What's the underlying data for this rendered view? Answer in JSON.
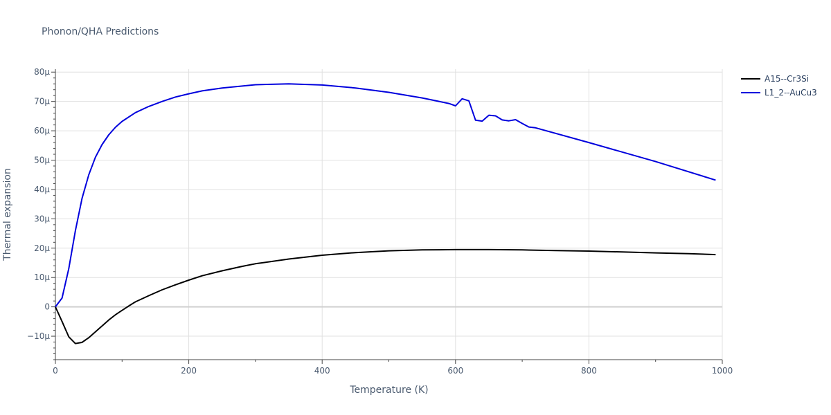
{
  "chart_data": {
    "type": "line",
    "title": "Phonon/QHA Predictions",
    "xlabel": "Temperature (K)",
    "ylabel": "Thermal expansion",
    "xlim": [
      0,
      1000
    ],
    "ylim": [
      -18,
      81
    ],
    "x_ticks": [
      0,
      200,
      400,
      600,
      800,
      1000
    ],
    "x_tick_labels": [
      "0",
      "200",
      "400",
      "600",
      "800",
      "1000"
    ],
    "y_ticks": [
      -10,
      0,
      10,
      20,
      30,
      40,
      50,
      60,
      70,
      80
    ],
    "y_tick_labels": [
      "−10μ",
      "0",
      "10μ",
      "20μ",
      "30μ",
      "40μ",
      "50μ",
      "60μ",
      "70μ",
      "80μ"
    ],
    "y_unit": "μ",
    "grid": true,
    "legend_position": "top-right",
    "series": [
      {
        "name": "A15--Cr3Si",
        "color": "#000000",
        "points": [
          [
            0,
            0
          ],
          [
            10,
            -5
          ],
          [
            20,
            -10.2
          ],
          [
            30,
            -12.5
          ],
          [
            40,
            -12.1
          ],
          [
            50,
            -10.5
          ],
          [
            60,
            -8.5
          ],
          [
            70,
            -6.5
          ],
          [
            80,
            -4.5
          ],
          [
            90,
            -2.7
          ],
          [
            100,
            -1.2
          ],
          [
            110,
            0.3
          ],
          [
            120,
            1.7
          ],
          [
            140,
            3.8
          ],
          [
            160,
            5.8
          ],
          [
            180,
            7.5
          ],
          [
            200,
            9.1
          ],
          [
            220,
            10.6
          ],
          [
            250,
            12.3
          ],
          [
            280,
            13.8
          ],
          [
            300,
            14.7
          ],
          [
            350,
            16.3
          ],
          [
            400,
            17.6
          ],
          [
            450,
            18.5
          ],
          [
            500,
            19.1
          ],
          [
            550,
            19.4
          ],
          [
            600,
            19.5
          ],
          [
            650,
            19.5
          ],
          [
            700,
            19.4
          ],
          [
            750,
            19.2
          ],
          [
            800,
            19.0
          ],
          [
            850,
            18.7
          ],
          [
            900,
            18.4
          ],
          [
            950,
            18.1
          ],
          [
            990,
            17.8
          ]
        ]
      },
      {
        "name": "L1_2--AuCu3",
        "color": "#0000dd",
        "points": [
          [
            0,
            0
          ],
          [
            10,
            3
          ],
          [
            20,
            13
          ],
          [
            30,
            26
          ],
          [
            40,
            37
          ],
          [
            50,
            45
          ],
          [
            60,
            51
          ],
          [
            70,
            55.3
          ],
          [
            80,
            58.6
          ],
          [
            90,
            61.2
          ],
          [
            100,
            63.2
          ],
          [
            120,
            66.2
          ],
          [
            140,
            68.3
          ],
          [
            160,
            70
          ],
          [
            180,
            71.5
          ],
          [
            200,
            72.6
          ],
          [
            220,
            73.6
          ],
          [
            250,
            74.6
          ],
          [
            300,
            75.7
          ],
          [
            350,
            76
          ],
          [
            400,
            75.6
          ],
          [
            450,
            74.6
          ],
          [
            500,
            73.1
          ],
          [
            550,
            71.2
          ],
          [
            590,
            69.3
          ],
          [
            600,
            68.5
          ],
          [
            610,
            70.9
          ],
          [
            620,
            70.2
          ],
          [
            630,
            63.6
          ],
          [
            640,
            63.3
          ],
          [
            650,
            65.3
          ],
          [
            660,
            65.1
          ],
          [
            670,
            63.7
          ],
          [
            680,
            63.4
          ],
          [
            690,
            63.8
          ],
          [
            700,
            62.5
          ],
          [
            710,
            61.3
          ],
          [
            720,
            61
          ],
          [
            800,
            56
          ],
          [
            900,
            49.5
          ],
          [
            990,
            43.2
          ]
        ]
      }
    ]
  }
}
